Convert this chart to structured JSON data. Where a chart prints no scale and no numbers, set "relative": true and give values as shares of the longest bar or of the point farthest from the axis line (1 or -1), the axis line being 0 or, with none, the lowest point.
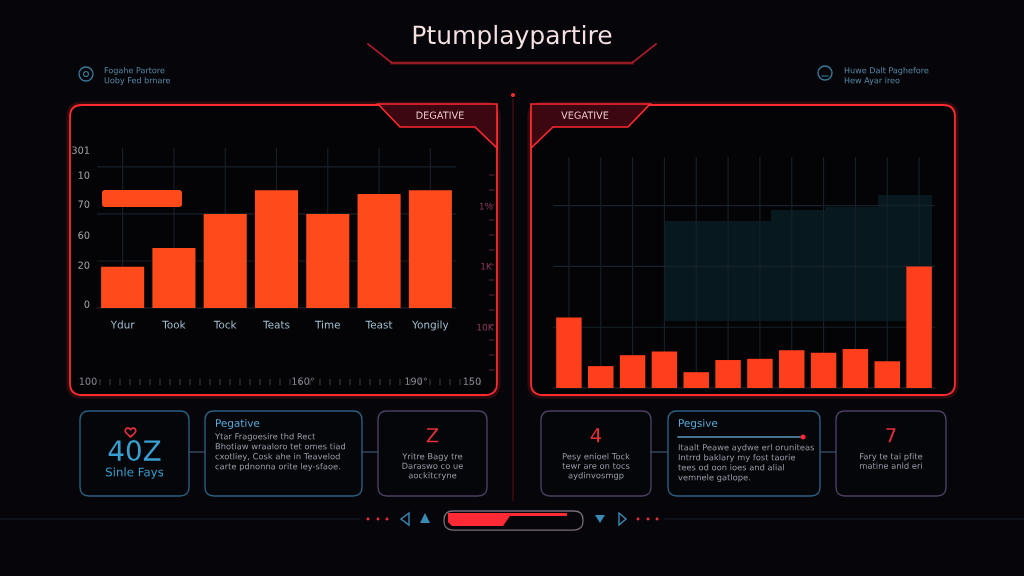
{
  "chart_data": [
    {
      "type": "other",
      "title": "Ptumplaypartire",
      "annotations": [
        "Fogahe Partore",
        "Uoby Fed brnare",
        "Huwe Dalt Paghefore",
        "Hew Ayar ireo"
      ]
    },
    {
      "type": "bar",
      "title": "DEGATIVE",
      "categories": [
        "Ydur",
        "Took",
        "Tock",
        "Teats",
        "Time",
        "Teast",
        "Yongily"
      ],
      "values": [
        0.35,
        0.51,
        0.8,
        1.0,
        0.8,
        0.97,
        1.0
      ],
      "color": "#ff4a1c",
      "relative": true,
      "annotations": [
        "301",
        "10",
        "70",
        "60",
        "20",
        "0",
        "1%",
        "1K",
        "10K",
        "100",
        "160°",
        "190°",
        "150"
      ],
      "grid": true
    },
    {
      "type": "bar",
      "title": "VEGATIVE",
      "categories": [
        null,
        null,
        null,
        null,
        null,
        null,
        null,
        null,
        null,
        null,
        null,
        null
      ],
      "values": [
        0.58,
        0.18,
        0.27,
        0.3,
        0.13,
        0.23,
        0.24,
        0.31,
        0.29,
        0.32,
        0.22,
        1.0
      ],
      "color": "#ff3e1c",
      "relative": true,
      "grid": true
    },
    {
      "type": "other",
      "title": "40Z",
      "subtitle": "Sinle Fays",
      "color": "#3a9fd0"
    },
    {
      "type": "other",
      "title": "Pegative",
      "annotations": [
        "Ytar Fragoesire thd Rect",
        "Bhotiaw wraaloro tet omes tiad",
        "cxotliey, Cosk ahe in Teavelod",
        "carte pdnonna orite ley-sfaoe."
      ],
      "color": "#5ab0e0"
    },
    {
      "type": "other",
      "title": "Z",
      "annotations": [
        "Yritre Bagy tre",
        "Daraswo co ue",
        "aockitcryne"
      ],
      "color": "#e8303a"
    },
    {
      "type": "other",
      "title": "4",
      "annotations": [
        "Pesy enioel Tock",
        "tewr are on tocs",
        "aydinvosmgp"
      ],
      "color": "#e8303a"
    },
    {
      "type": "other",
      "title": "Pegsive",
      "annotations": [
        "Itaalt Peawe aydwe erl oruniteas",
        "Intrrd baklary my fost taorie",
        "tees od oon ioes and alial",
        "vemnele gatlope."
      ],
      "color": "#5ab0e0"
    },
    {
      "type": "other",
      "title": "7",
      "annotations": [
        "Fary te tai pfite",
        "matine anld eri"
      ],
      "color": "#e8303a"
    }
  ]
}
